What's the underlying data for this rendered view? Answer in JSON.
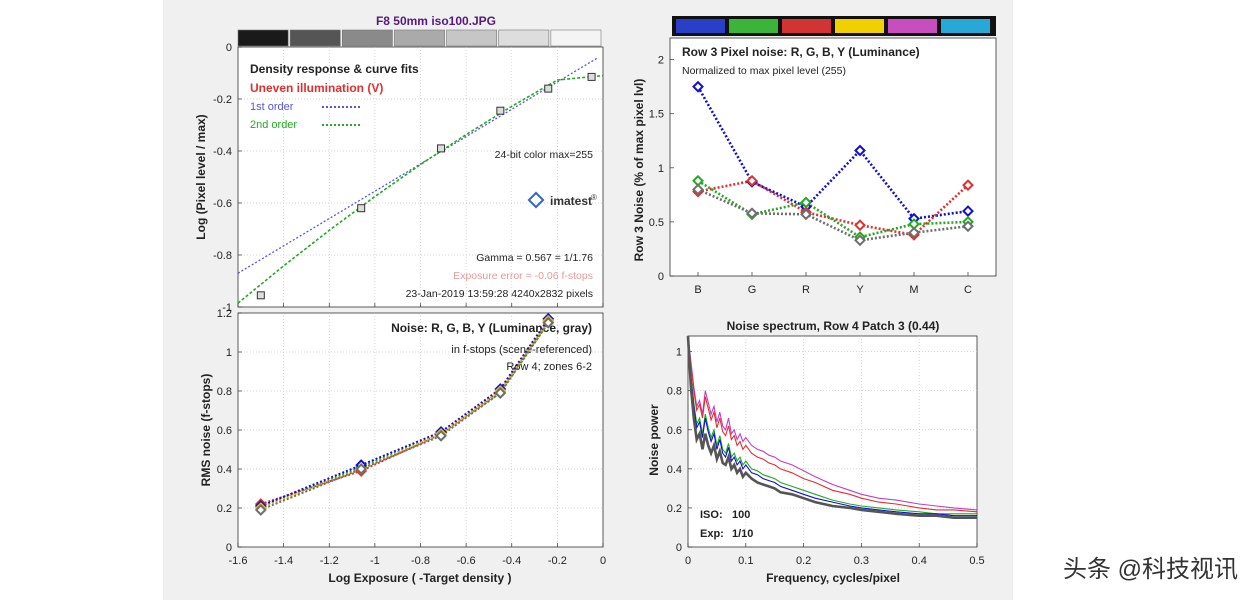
{
  "window_title": "F8 50mm iso100.JPG",
  "watermark": "头条 @科技视讯",
  "logo_text": "imatest",
  "logo_reg": "®",
  "colors": {
    "figure_bg": "#f0f0f0",
    "grid": "#c8c8c8",
    "red": "#e03030",
    "green": "#22aa22",
    "blue": "#1010d0",
    "yellow": "#e8c000",
    "magenta": "#c040c0",
    "gray": "#6e6e6e",
    "title_purple": "#551a7a",
    "legend_red": "#e03030",
    "exposure_error_pink": "#e89a9a"
  },
  "color_bar": [
    {
      "name": "blue",
      "color": "#2a3fc8"
    },
    {
      "name": "green",
      "color": "#3ab53a"
    },
    {
      "name": "red",
      "color": "#d23434"
    },
    {
      "name": "yellow",
      "color": "#f2d000"
    },
    {
      "name": "magenta",
      "color": "#c84ec0"
    },
    {
      "name": "cyan",
      "color": "#27a8d6"
    }
  ],
  "gray_strip": [
    "#1a1a1a",
    "#555555",
    "#8a8a8a",
    "#aaaaaa",
    "#c6c6c6",
    "#dddddd",
    "#f4f4f4"
  ],
  "chart_data": [
    {
      "id": "density",
      "type": "line",
      "title": "Density response & curve fits",
      "subtitle": "Uneven illumination (V)",
      "xlabel": "",
      "ylabel": "Log (Pixel level / max)",
      "xlim": [
        -1.6,
        0
      ],
      "ylim": [
        -1.0,
        0.0
      ],
      "xticks": [
        -1.6,
        -1.4,
        -1.2,
        -1,
        -0.8,
        -0.6,
        -0.4,
        -0.2,
        0
      ],
      "yticks": [
        0,
        -0.2,
        -0.4,
        -0.6,
        -0.8,
        -1
      ],
      "ytick_labels": [
        "0",
        "-0.2",
        "-0.4",
        "-0.6",
        "-0.8",
        "-1"
      ],
      "grid": true,
      "legend": [
        {
          "label": "1st order",
          "color": "#5555dd"
        },
        {
          "label": "2nd order",
          "color": "#22aa22"
        }
      ],
      "annotations": [
        "24-bit color  max=255",
        "Gamma = 0.567 = 1/1.76",
        "Exposure error = -0.06 f-stops",
        "23-Jan-2019 13:59:28   4240x2832 pixels"
      ],
      "points": {
        "x": [
          -1.5,
          -1.06,
          -0.71,
          -0.45,
          -0.24,
          -0.05
        ],
        "y": [
          -0.955,
          -0.62,
          -0.39,
          -0.245,
          -0.16,
          -0.115
        ]
      },
      "fit1": {
        "x": [
          -1.6,
          -0.02
        ],
        "y": [
          -0.87,
          -0.04
        ]
      },
      "fit2": {
        "x": [
          -1.6,
          -1.4,
          -1.2,
          -1.0,
          -0.8,
          -0.6,
          -0.4,
          -0.2,
          0.0
        ],
        "y": [
          -0.985,
          -0.842,
          -0.705,
          -0.575,
          -0.452,
          -0.337,
          -0.228,
          -0.127,
          -0.11
        ]
      }
    },
    {
      "id": "noise_fstops",
      "type": "line",
      "title": "Noise: R, G, B, Y (Luminance, gray)",
      "subtitle": "in f-stops (scene-referenced)",
      "note": "Row 4; zones 6-2",
      "xlabel": "Log Exposure ( -Target density )",
      "ylabel": "RMS noise (f-stops)",
      "xlim": [
        -1.6,
        0
      ],
      "ylim": [
        0,
        1.2
      ],
      "xticks": [
        -1.6,
        -1.4,
        -1.2,
        -1,
        -0.8,
        -0.6,
        -0.4,
        -0.2,
        0
      ],
      "yticks": [
        0,
        0.2,
        0.4,
        0.6,
        0.8,
        1,
        1.2
      ],
      "xtick_labels": [
        "-1.6",
        "-1.4",
        "-1.2",
        "-1",
        "-0.8",
        "-0.6",
        "-0.4",
        "-0.2",
        "0"
      ],
      "ytick_labels": [
        "0",
        "0.2",
        "0.4",
        "0.6",
        "0.8",
        "1",
        "1.2"
      ],
      "grid": true,
      "x": [
        -1.5,
        -1.06,
        -0.71,
        -0.45,
        -0.24
      ],
      "series": [
        {
          "name": "R",
          "color": "#e03030",
          "values": [
            0.22,
            0.39,
            0.58,
            0.8,
            1.16
          ]
        },
        {
          "name": "G",
          "color": "#22aa22",
          "values": [
            0.2,
            0.41,
            0.58,
            0.79,
            1.15
          ]
        },
        {
          "name": "B",
          "color": "#1010d0",
          "values": [
            0.21,
            0.42,
            0.59,
            0.81,
            1.17
          ]
        },
        {
          "name": "Y",
          "color": "#e8c000",
          "values": [
            0.2,
            0.4,
            0.58,
            0.8,
            1.16
          ]
        },
        {
          "name": "gray",
          "color": "#6e6e6e",
          "values": [
            0.19,
            0.4,
            0.57,
            0.79,
            1.15
          ]
        }
      ]
    },
    {
      "id": "row3_noise",
      "type": "line",
      "title": "Row 3 Pixel noise: R, G, B, Y (Luminance)",
      "subtitle": "Normalized to max pixel level (255)",
      "xlabel": "",
      "ylabel": "Row 3 Noise (% of max pixel lvl)",
      "categories": [
        "B",
        "G",
        "R",
        "Y",
        "M",
        "C"
      ],
      "ylim": [
        0,
        2.2
      ],
      "yticks": [
        0,
        0.5,
        1,
        1.5,
        2
      ],
      "ytick_labels": [
        "0",
        "0.5",
        "1",
        "1.5",
        "2"
      ],
      "grid": false,
      "series": [
        {
          "name": "B",
          "color": "#1010d0",
          "values": [
            1.75,
            0.87,
            0.64,
            1.16,
            0.53,
            0.6
          ]
        },
        {
          "name": "R",
          "color": "#e03030",
          "values": [
            0.78,
            0.88,
            0.59,
            0.47,
            0.38,
            0.84
          ]
        },
        {
          "name": "G",
          "color": "#22aa22",
          "values": [
            0.88,
            0.57,
            0.68,
            0.36,
            0.48,
            0.5
          ]
        },
        {
          "name": "Y",
          "color": "#6e6e6e",
          "values": [
            0.8,
            0.58,
            0.57,
            0.33,
            0.4,
            0.46
          ]
        }
      ]
    },
    {
      "id": "noise_spectrum",
      "type": "line",
      "title": "Noise spectrum, Row 4 Patch 3 (0.44)",
      "xlabel": "Frequency, cycles/pixel",
      "ylabel": "Noise power",
      "xlim": [
        0,
        0.5
      ],
      "ylim": [
        0,
        1.08
      ],
      "xticks": [
        0,
        0.1,
        0.2,
        0.3,
        0.4,
        0.5
      ],
      "yticks": [
        0,
        0.2,
        0.4,
        0.6,
        0.8,
        1
      ],
      "xtick_labels": [
        "0",
        "0.1",
        "0.2",
        "0.3",
        "0.4",
        "0.5"
      ],
      "ytick_labels": [
        "0",
        "0.2",
        "0.4",
        "0.6",
        "0.8",
        "1"
      ],
      "grid": true,
      "iso_label": "ISO:",
      "iso_value": "100",
      "exp_label": "Exp:",
      "exp_value": "1/10",
      "x": [
        0,
        0.005,
        0.01,
        0.015,
        0.02,
        0.025,
        0.03,
        0.035,
        0.04,
        0.045,
        0.05,
        0.055,
        0.06,
        0.065,
        0.07,
        0.075,
        0.08,
        0.085,
        0.09,
        0.095,
        0.1,
        0.11,
        0.12,
        0.13,
        0.14,
        0.15,
        0.16,
        0.18,
        0.2,
        0.22,
        0.25,
        0.28,
        0.3,
        0.33,
        0.36,
        0.4,
        0.43,
        0.46,
        0.5
      ],
      "series": [
        {
          "name": "magenta",
          "color": "#c040c0",
          "values": [
            1.08,
            0.95,
            0.82,
            0.72,
            0.75,
            0.68,
            0.8,
            0.74,
            0.68,
            0.72,
            0.64,
            0.69,
            0.62,
            0.6,
            0.66,
            0.58,
            0.6,
            0.55,
            0.58,
            0.54,
            0.56,
            0.52,
            0.5,
            0.49,
            0.47,
            0.46,
            0.44,
            0.42,
            0.39,
            0.36,
            0.32,
            0.29,
            0.27,
            0.25,
            0.24,
            0.22,
            0.21,
            0.2,
            0.19
          ]
        },
        {
          "name": "red",
          "color": "#e03030",
          "values": [
            1.08,
            0.93,
            0.8,
            0.7,
            0.73,
            0.66,
            0.77,
            0.71,
            0.65,
            0.69,
            0.61,
            0.66,
            0.59,
            0.57,
            0.62,
            0.55,
            0.57,
            0.52,
            0.54,
            0.5,
            0.52,
            0.48,
            0.46,
            0.45,
            0.43,
            0.42,
            0.4,
            0.38,
            0.35,
            0.33,
            0.29,
            0.27,
            0.25,
            0.23,
            0.22,
            0.2,
            0.19,
            0.19,
            0.18
          ]
        },
        {
          "name": "green",
          "color": "#22aa22",
          "values": [
            1.08,
            0.88,
            0.74,
            0.63,
            0.66,
            0.58,
            0.68,
            0.61,
            0.56,
            0.6,
            0.52,
            0.57,
            0.5,
            0.48,
            0.53,
            0.46,
            0.48,
            0.44,
            0.46,
            0.42,
            0.44,
            0.4,
            0.39,
            0.37,
            0.36,
            0.35,
            0.33,
            0.31,
            0.29,
            0.27,
            0.24,
            0.22,
            0.21,
            0.2,
            0.19,
            0.18,
            0.17,
            0.17,
            0.17
          ]
        },
        {
          "name": "blue",
          "color": "#1010d0",
          "values": [
            1.08,
            0.87,
            0.72,
            0.61,
            0.64,
            0.56,
            0.66,
            0.59,
            0.54,
            0.58,
            0.5,
            0.55,
            0.48,
            0.46,
            0.51,
            0.44,
            0.46,
            0.42,
            0.44,
            0.4,
            0.42,
            0.38,
            0.37,
            0.35,
            0.34,
            0.33,
            0.31,
            0.29,
            0.27,
            0.25,
            0.23,
            0.21,
            0.2,
            0.19,
            0.18,
            0.17,
            0.17,
            0.16,
            0.16
          ]
        },
        {
          "name": "gray",
          "color": "#555555",
          "values": [
            1.08,
            0.82,
            0.66,
            0.55,
            0.58,
            0.5,
            0.58,
            0.52,
            0.48,
            0.52,
            0.45,
            0.49,
            0.43,
            0.42,
            0.46,
            0.4,
            0.42,
            0.38,
            0.4,
            0.36,
            0.38,
            0.35,
            0.33,
            0.32,
            0.31,
            0.3,
            0.28,
            0.27,
            0.25,
            0.23,
            0.21,
            0.2,
            0.19,
            0.18,
            0.17,
            0.16,
            0.16,
            0.15,
            0.15
          ]
        }
      ]
    }
  ]
}
